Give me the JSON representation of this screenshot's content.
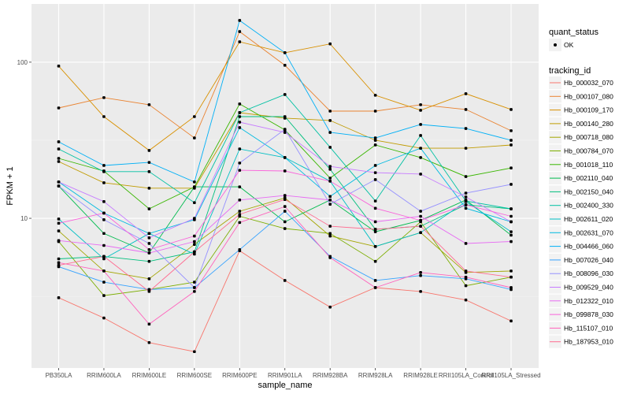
{
  "chart_data": {
    "type": "line",
    "xlabel": "sample_name",
    "ylabel": "FPKM + 1",
    "y_scale": "log10",
    "ylim": [
      1.1,
      236
    ],
    "y_ticks": [
      10,
      100
    ],
    "y_tick_labels": [
      "10",
      "100"
    ],
    "grid": true,
    "legend_position": "right",
    "categories": [
      "PB350LA",
      "RRIM600LA",
      "RRIM600LE",
      "RRIM600SE",
      "RRIM600PE",
      "RRIM901LA",
      "RRIM928BA",
      "RRIM928LA",
      "RRIM928LE",
      "RRII105LA_Control",
      "RRII105LA_Stressed"
    ],
    "shape_legend": {
      "title": "quant_status",
      "entries": [
        "OK"
      ]
    },
    "color_legend_title": "tracking_id",
    "series": [
      {
        "name": "Hb_000032_070",
        "color": "#F8766D",
        "values": [
          3.1,
          2.3,
          1.6,
          1.4,
          6.2,
          4.0,
          2.7,
          3.6,
          3.4,
          3.0,
          2.2
        ]
      },
      {
        "name": "Hb_000107_080",
        "color": "#EA8331",
        "values": [
          50.9,
          59.3,
          53.4,
          32.7,
          157,
          95.5,
          48.6,
          48.6,
          53.4,
          49.8,
          36.4
        ]
      },
      {
        "name": "Hb_000109_170",
        "color": "#D89000",
        "values": [
          94.4,
          44.8,
          27.2,
          44.8,
          135,
          115,
          131,
          61.4,
          49.2,
          62.8,
          49.8
        ]
      },
      {
        "name": "Hb_000140_280",
        "color": "#C09B00",
        "values": [
          23.1,
          16.9,
          15.6,
          15.6,
          47.5,
          43.8,
          42.3,
          31.6,
          28.1,
          28.1,
          29.5
        ]
      },
      {
        "name": "Hb_000718_080",
        "color": "#A3A500",
        "values": [
          8.3,
          4.6,
          4.1,
          6.8,
          11.1,
          13.5,
          7.7,
          6.6,
          8.1,
          4.5,
          4.6
        ]
      },
      {
        "name": "Hb_000784_070",
        "color": "#7CAE00",
        "values": [
          7.1,
          3.2,
          3.5,
          3.9,
          10.3,
          8.6,
          8.0,
          5.3,
          9.5,
          3.7,
          4.2
        ]
      },
      {
        "name": "Hb_001018_110",
        "color": "#39B600",
        "values": [
          24.2,
          20.1,
          11.5,
          15.9,
          54.0,
          36.8,
          18.1,
          29.5,
          24.5,
          18.5,
          21.0
        ]
      },
      {
        "name": "Hb_002110_040",
        "color": "#00BB4E",
        "values": [
          16.1,
          8.0,
          6.0,
          15.9,
          15.9,
          9.5,
          13.1,
          8.2,
          9.7,
          13.1,
          7.8
        ]
      },
      {
        "name": "Hb_002150_040",
        "color": "#00BF7D",
        "values": [
          5.5,
          5.7,
          5.3,
          6.1,
          44.8,
          44.8,
          20.6,
          8.5,
          8.9,
          12.2,
          11.5
        ]
      },
      {
        "name": "Hb_002400_330",
        "color": "#00C1A3",
        "values": [
          27.8,
          19.9,
          19.9,
          12.6,
          47.5,
          62.1,
          28.5,
          12.9,
          33.9,
          12.9,
          11.5
        ]
      },
      {
        "name": "Hb_002611_020",
        "color": "#00BFC4",
        "values": [
          9.9,
          5.5,
          8.0,
          5.9,
          27.8,
          24.5,
          17.3,
          6.6,
          8.1,
          12.8,
          8.2
        ]
      },
      {
        "name": "Hb_002631_070",
        "color": "#00BAE0",
        "values": [
          17.1,
          10.8,
          8.0,
          9.8,
          38.1,
          24.5,
          13.8,
          21.8,
          28.1,
          11.6,
          9.5
        ]
      },
      {
        "name": "Hb_004466_060",
        "color": "#00B0F6",
        "values": [
          30.9,
          21.8,
          22.8,
          17.1,
          185,
          115,
          35.5,
          32.7,
          39.9,
          37.6,
          31.6
        ]
      },
      {
        "name": "Hb_007026_040",
        "color": "#35A2FF",
        "values": [
          4.9,
          3.9,
          3.5,
          3.6,
          6.3,
          11.1,
          5.7,
          4.0,
          4.3,
          4.1,
          3.5
        ]
      },
      {
        "name": "Hb_008096_030",
        "color": "#9590FF",
        "values": [
          16.1,
          9.8,
          6.9,
          3.6,
          22.6,
          37.2,
          12.3,
          17.7,
          11.1,
          14.5,
          16.5
        ]
      },
      {
        "name": "Hb_009529_040",
        "color": "#C77CFF",
        "values": [
          17.1,
          12.8,
          7.5,
          10.0,
          41.3,
          35.5,
          21.5,
          19.6,
          19.2,
          13.7,
          9.5
        ]
      },
      {
        "name": "Hb_012322_010",
        "color": "#E76BF3",
        "values": [
          7.2,
          6.7,
          6.0,
          7.1,
          13.1,
          14.0,
          13.1,
          9.5,
          10.3,
          6.9,
          7.1
        ]
      },
      {
        "name": "Hb_099878_030",
        "color": "#FA62DB",
        "values": [
          9.3,
          10.8,
          6.3,
          7.7,
          20.3,
          20.1,
          17.3,
          11.6,
          9.7,
          12.2,
          10.3
        ]
      },
      {
        "name": "Hb_115107_010",
        "color": "#FF62BC",
        "values": [
          5.2,
          4.6,
          2.1,
          3.4,
          9.4,
          11.9,
          5.6,
          3.6,
          4.5,
          4.2,
          3.6
        ]
      },
      {
        "name": "Hb_187953_010",
        "color": "#FF6C91",
        "values": [
          5.0,
          5.7,
          3.4,
          6.1,
          10.6,
          13.2,
          8.9,
          8.5,
          8.9,
          4.6,
          4.2
        ]
      }
    ]
  }
}
